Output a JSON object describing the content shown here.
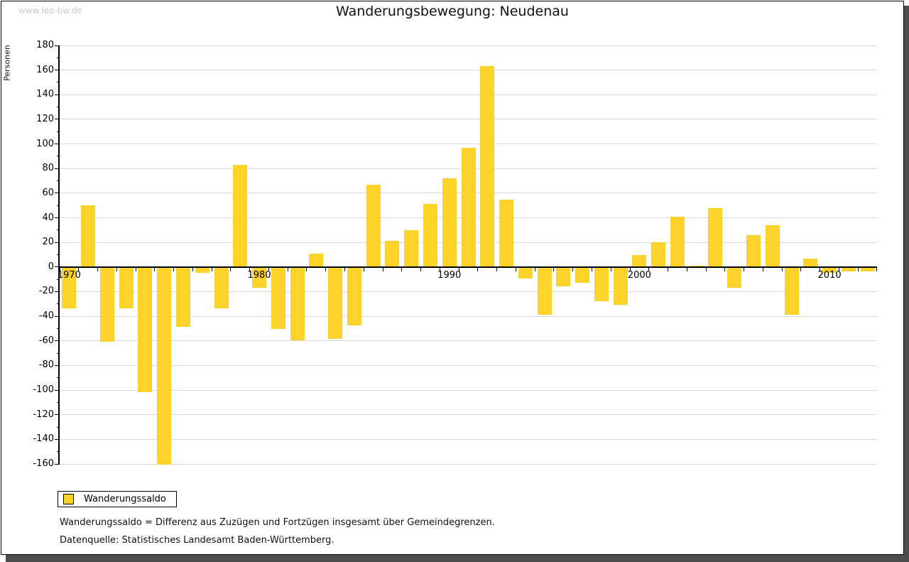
{
  "watermark": "www.leo-bw.de",
  "header": {
    "title": "Wanderungsbewegung: Neudenau"
  },
  "chart_data": {
    "type": "bar",
    "title": "Wanderungsbewegung: Neudenau",
    "xlabel": "",
    "ylabel": "Personen",
    "x": [
      1970,
      1971,
      1972,
      1973,
      1974,
      1975,
      1976,
      1977,
      1978,
      1979,
      1980,
      1981,
      1982,
      1983,
      1984,
      1985,
      1986,
      1987,
      1988,
      1989,
      1990,
      1991,
      1992,
      1993,
      1994,
      1995,
      1996,
      1997,
      1998,
      1999,
      2000,
      2001,
      2002,
      2003,
      2004,
      2005,
      2006,
      2007,
      2008,
      2009,
      2010,
      2011,
      2012
    ],
    "series": [
      {
        "name": "Wanderungssaldo",
        "color": "#FCD22B",
        "values": [
          -33,
          50,
          -60,
          -33,
          -101,
          -160,
          -48,
          -4,
          -33,
          83,
          -16,
          -50,
          -59,
          11,
          -58,
          -47,
          67,
          21,
          30,
          51,
          72,
          97,
          163,
          55,
          -9,
          -38,
          -15,
          -12,
          -27,
          -30,
          10,
          20,
          41,
          1,
          48,
          -16,
          26,
          34,
          -38,
          7,
          -4,
          -3,
          -3
        ]
      }
    ],
    "ylim": [
      -160,
      180
    ],
    "ytick_step": 20,
    "ytick_minor_step": 10,
    "xtick_labels": [
      1970,
      1980,
      1990,
      2000,
      2010
    ],
    "grid": "horizontal",
    "legend_position": "bottom-left"
  },
  "legend": {
    "items": [
      {
        "label": "Wanderungssaldo",
        "color": "#FCD22B"
      }
    ]
  },
  "footnotes": [
    "Wanderungssaldo = Differenz aus Zuzügen und Fortzügen insgesamt über Gemeindegrenzen.",
    "Datenquelle: Statistisches Landesamt Baden-Württemberg."
  ],
  "colors": {
    "bar": "#FCD22B",
    "grid": "#D9D9D9",
    "axis": "#000000",
    "watermark": "#CCCCCC",
    "frame_shadow": "#4D4D4D"
  }
}
